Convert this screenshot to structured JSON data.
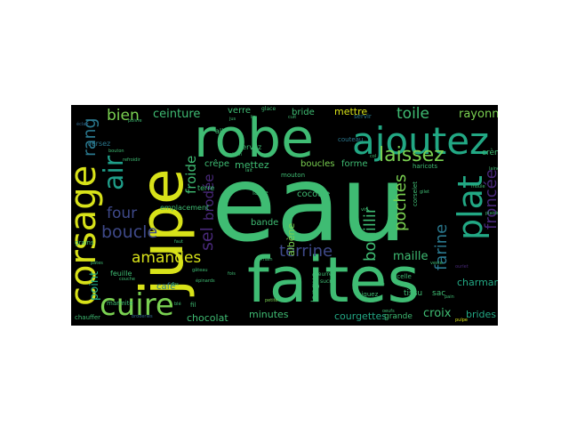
{
  "words": {
    "eau": "eau",
    "faites": "faites",
    "robe": "robe",
    "jupe": "jupe",
    "ajoutez": "ajoutez",
    "corsage": "corsage",
    "cuire": "cuire",
    "plat": "plat",
    "laissez": "laissez",
    "air": "air",
    "boucle": "boucle",
    "amandes": "amandes",
    "four": "four",
    "bien": "bien",
    "ceinture": "ceinture",
    "froncee": "froncée",
    "bouillir": "bouillir",
    "poches": "poches",
    "terrine": "terrine",
    "farine": "farine",
    "toile": "toile",
    "rayonne": "rayonne",
    "sel": "sel",
    "brodee": "brodée",
    "froide": "froide",
    "rang": "rang",
    "point": "point",
    "maille": "maille",
    "charmante": "charmante",
    "courgettes": "courgettes",
    "croix": "croix",
    "brides": "brides",
    "minutes": "minutes",
    "chocolat": "chocolat",
    "langue": "langue",
    "crepe": "crêpe",
    "mettez": "mettez",
    "boucles": "boucles",
    "forme": "forme",
    "mettre": "mettre",
    "bride": "bride",
    "verre": "verre",
    "cocotte": "cocotte",
    "bande": "bande",
    "albene": "albène",
    "cafe": "café",
    "creme": "crème",
    "crochet": "crochet",
    "grande": "grande",
    "tissu": "tissu",
    "sac": "sac",
    "terre": "terre",
    "emplacement": "emplacement",
    "versez": "versez",
    "servez": "servez",
    "feuille": "feuille",
    "all": "all",
    "large": "large",
    "couteau": "couteau",
    "fil": "fil",
    "marmite": "marmite",
    "chauffer": "chauffer",
    "grains": "grains",
    "mouton": "mouton",
    "ficelle": "ficelle",
    "piquez": "piquez",
    "haricots": "haricots",
    "corselet": "corselet",
    "servir": "servir",
    "glace": "glace",
    "beurre": "beurre",
    "sucre": "sucre",
    "eclair": "éclair",
    "gateau": "gâteau",
    "fois": "fois",
    "petite": "petite",
    "lait": "lait",
    "main": "main",
    "refroidir": "refroidir",
    "couche": "couche",
    "broderies": "broderies",
    "pates": "pâtes",
    "ble": "blé",
    "ourlet": "ourlet",
    "faut": "faut",
    "poivre": "poivre",
    "cuit": "cuit",
    "sauce": "sauce",
    "jus": "jus",
    "pulpe": "pulpe",
    "epinards": "épinards",
    "bouton": "bouton",
    "citron": "citron",
    "lin": "lin",
    "vin": "vin",
    "oeufs": "oeufs",
    "col": "col",
    "plaisir": "plaisir",
    "moule": "moule",
    "laine": "laine",
    "dos": "dos",
    "gilet": "gilet",
    "veste": "veste",
    "pain": "pain"
  },
  "colors": {
    "background": "#000000",
    "yellow": "#d8e219",
    "lightgreen": "#7ad151",
    "green": "#3fbc73",
    "teal": "#22a884",
    "cyan": "#1f9e89",
    "blue": "#2a788e",
    "navy": "#31688e",
    "indigo": "#3e4989",
    "purple": "#482878",
    "darkpurple": "#440154"
  }
}
